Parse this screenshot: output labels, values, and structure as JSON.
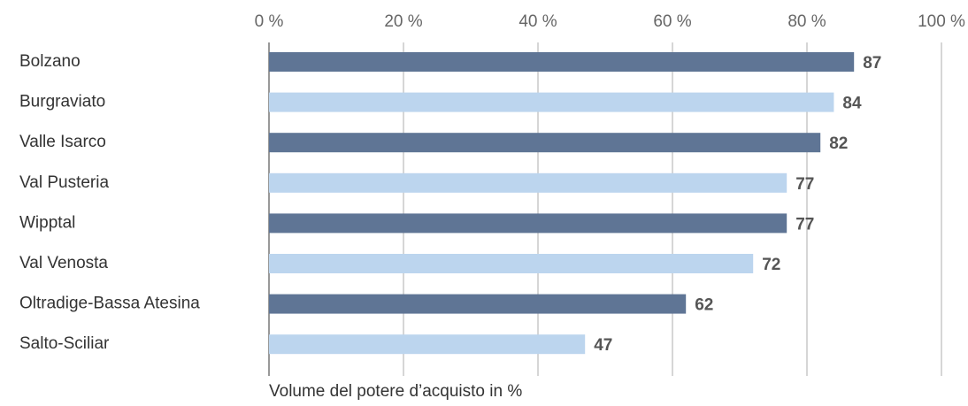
{
  "chart_data": {
    "type": "hbar",
    "x_label": "Volume del potere d’acquisto in %",
    "categories": [
      "Bolzano",
      "Burgraviato",
      "Valle Isarco",
      "Val Pusteria",
      "Wipptal",
      "Val Venosta",
      "Oltradige-Bassa Atesina",
      "Salto-Sciliar"
    ],
    "values": [
      87,
      84,
      82,
      77,
      77,
      72,
      62,
      47
    ],
    "colors": [
      "#5f7595",
      "#bcd5ee",
      "#5f7595",
      "#bcd5ee",
      "#5f7595",
      "#bcd5ee",
      "#5f7595",
      "#bcd5ee"
    ],
    "xlim": [
      0,
      100
    ],
    "xticks": [
      {
        "value": 0,
        "label": "0 %"
      },
      {
        "value": 20,
        "label": "20 %"
      },
      {
        "value": 40,
        "label": "40 %"
      },
      {
        "value": 60,
        "label": "60 %"
      },
      {
        "value": 80,
        "label": "80 %"
      },
      {
        "value": 100,
        "label": "100 %"
      }
    ],
    "grid": true
  }
}
